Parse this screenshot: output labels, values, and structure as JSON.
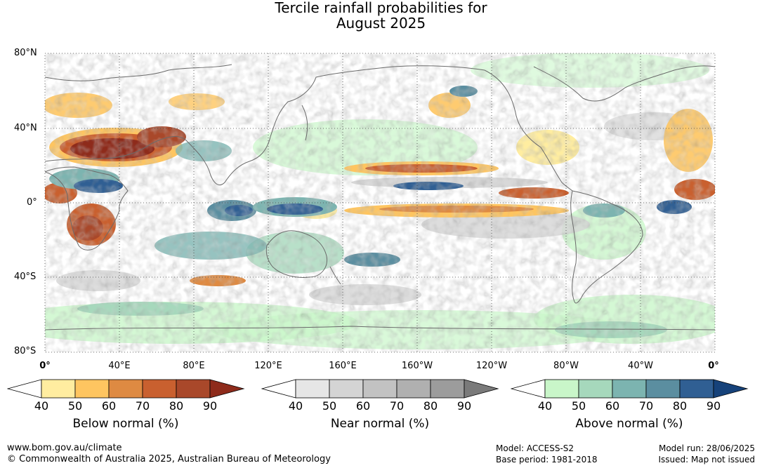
{
  "title_line1": "Tercile rainfall probabilities for",
  "title_line2": "August 2025",
  "map": {
    "lat_labels": [
      "80°N",
      "40°N",
      "0°",
      "40°S",
      "80°S"
    ],
    "lon_labels": [
      "0°",
      "40°E",
      "80°E",
      "120°E",
      "160°E",
      "160°W",
      "120°W",
      "80°W",
      "40°W",
      "0°"
    ]
  },
  "colorbars": [
    {
      "title": "Below normal (%)",
      "ticks": [
        "40",
        "50",
        "60",
        "70",
        "80",
        "90"
      ],
      "colors": [
        "#ffffff",
        "#ffeda0",
        "#fec560",
        "#de8a42",
        "#c9602f",
        "#a9482a",
        "#8e2b1b"
      ]
    },
    {
      "title": "Near normal (%)",
      "ticks": [
        "40",
        "50",
        "60",
        "70",
        "80",
        "90"
      ],
      "colors": [
        "#ffffff",
        "#e6e6e6",
        "#d4d4d4",
        "#c2c2c2",
        "#b0b0b0",
        "#9c9c9c",
        "#7a7a7a"
      ]
    },
    {
      "title": "Above normal (%)",
      "ticks": [
        "40",
        "50",
        "60",
        "70",
        "80",
        "90"
      ],
      "colors": [
        "#ffffff",
        "#c9f6c9",
        "#a6d8bc",
        "#7cb4b0",
        "#5b8ea0",
        "#305f93",
        "#16427a"
      ]
    }
  ],
  "footer": {
    "url": "www.bom.gov.au/climate",
    "copyright": "© Commonwealth of Australia 2025, Australian Bureau of Meteorology",
    "model": "Model: ACCESS-S2",
    "base_period": "Base period: 1981-2018",
    "model_run": "Model run: 28/06/2025",
    "issued": "Issued: Map not issued"
  }
}
